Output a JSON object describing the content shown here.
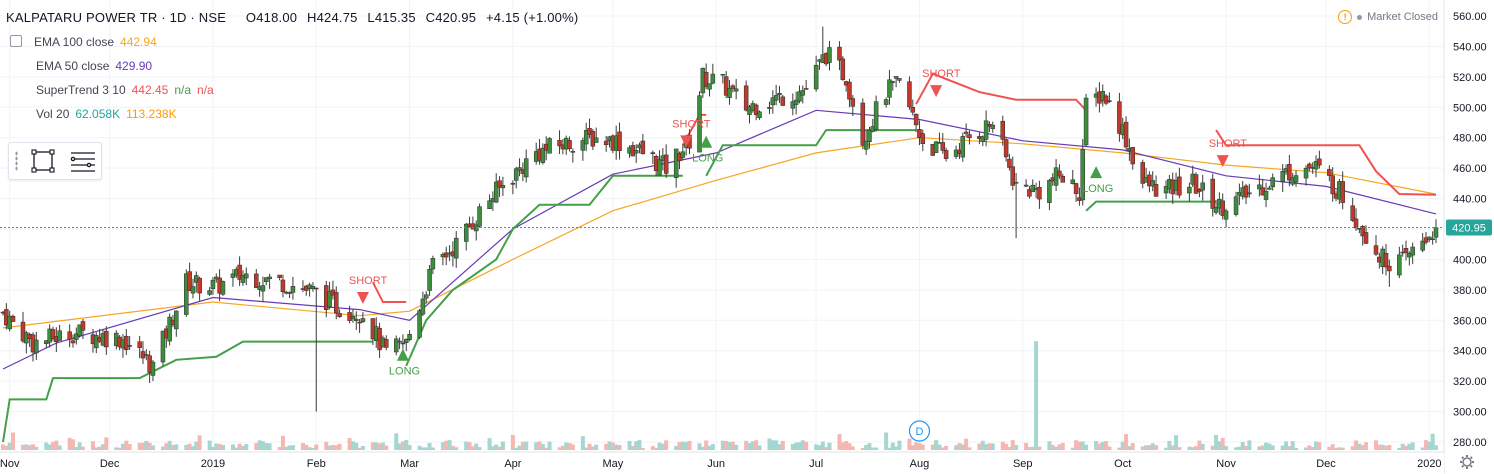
{
  "header": {
    "symbol_title": "KALPATARU POWER TR · 1D · NSE",
    "open_label": "O",
    "open": "418.00",
    "high_label": "H",
    "high": "424.75",
    "low_label": "L",
    "low": "415.35",
    "close_label": "C",
    "close": "420.95",
    "change": "+4.15 (+1.00%)"
  },
  "indicators": [
    {
      "label": "EMA 100 close",
      "values": [
        "442.94"
      ],
      "colors": [
        "#f5a623"
      ]
    },
    {
      "label": "EMA 50 close",
      "values": [
        "429.90"
      ],
      "colors": [
        "#673ab7"
      ]
    },
    {
      "label": "SuperTrend 3 10",
      "values": [
        "442.45",
        "n/a",
        "n/a"
      ],
      "colors": [
        "#ef5350",
        "#43a047",
        "#ef5350"
      ]
    },
    {
      "label": "Vol 20",
      "values": [
        "62.058K",
        "113.238K"
      ],
      "colors": [
        "#26a69a",
        "#ff9800"
      ]
    }
  ],
  "market_status": "Market Closed",
  "last_price_tag": "420.95",
  "dividend_marker": "D",
  "colors": {
    "up": "#26a69a",
    "down": "#ef5350",
    "candle_up": "#3c8d3c",
    "candle_down": "#c0392b",
    "ema100": "#f5a623",
    "ema50": "#673ab7",
    "st_up": "#43a047",
    "st_down": "#ef5350",
    "grid": "#f0f3fa",
    "last_price": "#26a69a"
  },
  "icons": [
    "rectangle-icon",
    "menu-lines-icon",
    "warning-icon",
    "settings-icon"
  ],
  "chart_data": {
    "type": "candlestick",
    "ylim": [
      275,
      565
    ],
    "y_ticks": [
      560,
      540,
      520,
      500,
      480,
      460,
      440,
      420,
      400,
      380,
      360,
      340,
      320,
      300,
      280
    ],
    "x_ticks": [
      {
        "label": "Nov",
        "date": "2018-11-01"
      },
      {
        "label": "Dec",
        "date": "2018-12-01"
      },
      {
        "label": "2019",
        "date": "2019-01-01"
      },
      {
        "label": "Feb",
        "date": "2019-02-01"
      },
      {
        "label": "Mar",
        "date": "2019-03-01"
      },
      {
        "label": "Apr",
        "date": "2019-04-01"
      },
      {
        "label": "May",
        "date": "2019-05-01"
      },
      {
        "label": "Jun",
        "date": "2019-06-01"
      },
      {
        "label": "Jul",
        "date": "2019-07-01"
      },
      {
        "label": "Aug",
        "date": "2019-08-01"
      },
      {
        "label": "Sep",
        "date": "2019-09-01"
      },
      {
        "label": "Oct",
        "date": "2019-10-01"
      },
      {
        "label": "Nov",
        "date": "2019-11-01"
      },
      {
        "label": "Dec",
        "date": "2019-12-01"
      },
      {
        "label": "2020",
        "date": "2020-01-01"
      }
    ],
    "price_path": [
      [
        "2018-10-30",
        365
      ],
      [
        "2018-11-08",
        345
      ],
      [
        "2018-11-20",
        352
      ],
      [
        "2018-12-05",
        348
      ],
      [
        "2018-12-14",
        330
      ],
      [
        "2018-12-24",
        385
      ],
      [
        "2019-01-02",
        382
      ],
      [
        "2019-01-10",
        390
      ],
      [
        "2019-01-22",
        385
      ],
      [
        "2019-02-01",
        378
      ],
      [
        "2019-02-08",
        368
      ],
      [
        "2019-02-15",
        365
      ],
      [
        "2019-02-22",
        338
      ],
      [
        "2019-02-28",
        345
      ],
      [
        "2019-03-08",
        395
      ],
      [
        "2019-03-15",
        410
      ],
      [
        "2019-03-25",
        440
      ],
      [
        "2019-04-01",
        455
      ],
      [
        "2019-04-08",
        470
      ],
      [
        "2019-04-15",
        475
      ],
      [
        "2019-04-25",
        480
      ],
      [
        "2019-05-02",
        478
      ],
      [
        "2019-05-10",
        470
      ],
      [
        "2019-05-17",
        460
      ],
      [
        "2019-05-24",
        478
      ],
      [
        "2019-05-28",
        520
      ],
      [
        "2019-06-03",
        515
      ],
      [
        "2019-06-10",
        500
      ],
      [
        "2019-06-18",
        505
      ],
      [
        "2019-06-28",
        512
      ],
      [
        "2019-07-04",
        535
      ],
      [
        "2019-07-10",
        520
      ],
      [
        "2019-07-15",
        480
      ],
      [
        "2019-07-22",
        510
      ],
      [
        "2019-07-26",
        515
      ],
      [
        "2019-08-02",
        478
      ],
      [
        "2019-08-09",
        468
      ],
      [
        "2019-08-16",
        480
      ],
      [
        "2019-08-23",
        490
      ],
      [
        "2019-08-30",
        448
      ],
      [
        "2019-09-06",
        445
      ],
      [
        "2019-09-12",
        455
      ],
      [
        "2019-09-18",
        445
      ],
      [
        "2019-09-20",
        500
      ],
      [
        "2019-09-25",
        510
      ],
      [
        "2019-10-01",
        485
      ],
      [
        "2019-10-07",
        450
      ],
      [
        "2019-10-14",
        445
      ],
      [
        "2019-10-22",
        450
      ],
      [
        "2019-10-30",
        435
      ],
      [
        "2019-11-05",
        440
      ],
      [
        "2019-11-13",
        450
      ],
      [
        "2019-11-22",
        460
      ],
      [
        "2019-11-28",
        460
      ],
      [
        "2019-12-05",
        445
      ],
      [
        "2019-12-12",
        420
      ],
      [
        "2019-12-18",
        400
      ],
      [
        "2019-12-24",
        398
      ],
      [
        "2019-12-30",
        412
      ],
      [
        "2020-01-03",
        420.95
      ]
    ],
    "wick_extremes": [
      {
        "date": "2019-02-01",
        "low": 300
      },
      {
        "date": "2019-08-30",
        "low": 414
      },
      {
        "date": "2019-07-03",
        "high": 553
      },
      {
        "date": "2019-12-20",
        "low": 382
      }
    ],
    "ema100": [
      [
        "2018-10-30",
        355
      ],
      [
        "2019-01-01",
        372
      ],
      [
        "2019-02-14",
        363
      ],
      [
        "2019-03-01",
        366
      ],
      [
        "2019-04-01",
        400
      ],
      [
        "2019-05-01",
        432
      ],
      [
        "2019-06-01",
        452
      ],
      [
        "2019-07-01",
        470
      ],
      [
        "2019-08-01",
        480
      ],
      [
        "2019-09-01",
        476
      ],
      [
        "2019-10-01",
        470
      ],
      [
        "2019-11-01",
        462
      ],
      [
        "2019-12-01",
        457
      ],
      [
        "2020-01-03",
        442.94
      ]
    ],
    "ema50": [
      [
        "2018-10-30",
        328
      ],
      [
        "2018-11-15",
        345
      ],
      [
        "2019-01-01",
        375
      ],
      [
        "2019-02-14",
        367
      ],
      [
        "2019-03-01",
        360
      ],
      [
        "2019-04-01",
        420
      ],
      [
        "2019-05-01",
        456
      ],
      [
        "2019-06-01",
        470
      ],
      [
        "2019-07-01",
        498
      ],
      [
        "2019-08-01",
        492
      ],
      [
        "2019-09-01",
        478
      ],
      [
        "2019-10-01",
        472
      ],
      [
        "2019-11-01",
        455
      ],
      [
        "2019-12-01",
        448
      ],
      [
        "2020-01-03",
        429.9
      ]
    ],
    "supertrend": [
      {
        "trend": "long",
        "points": [
          [
            "2018-10-30",
            280
          ],
          [
            "2018-11-01",
            308
          ],
          [
            "2018-11-12",
            308
          ],
          [
            "2018-11-14",
            322
          ],
          [
            "2018-12-10",
            322
          ],
          [
            "2018-12-21",
            334
          ],
          [
            "2019-01-02",
            336
          ],
          [
            "2019-01-10",
            346
          ],
          [
            "2019-02-18",
            346
          ]
        ]
      },
      {
        "trend": "short",
        "points": [
          [
            "2019-02-18",
            385
          ],
          [
            "2019-02-21",
            372
          ],
          [
            "2019-02-28",
            372
          ]
        ]
      },
      {
        "trend": "long",
        "points": [
          [
            "2019-02-28",
            330
          ],
          [
            "2019-03-06",
            360
          ],
          [
            "2019-03-14",
            380
          ],
          [
            "2019-03-27",
            400
          ],
          [
            "2019-04-01",
            420
          ],
          [
            "2019-04-09",
            436
          ],
          [
            "2019-04-24",
            436
          ],
          [
            "2019-05-01",
            455
          ],
          [
            "2019-05-22",
            455
          ]
        ]
      },
      {
        "trend": "short",
        "points": [
          [
            "2019-05-22",
            475
          ],
          [
            "2019-05-27",
            495
          ],
          [
            "2019-05-29",
            495
          ]
        ]
      },
      {
        "trend": "long",
        "points": [
          [
            "2019-05-29",
            455
          ],
          [
            "2019-06-03",
            475
          ],
          [
            "2019-07-01",
            475
          ],
          [
            "2019-07-04",
            485
          ],
          [
            "2019-07-31",
            485
          ]
        ]
      },
      {
        "trend": "short",
        "points": [
          [
            "2019-07-31",
            502
          ],
          [
            "2019-08-05",
            522
          ],
          [
            "2019-08-19",
            510
          ],
          [
            "2019-08-30",
            505
          ],
          [
            "2019-09-17",
            505
          ],
          [
            "2019-09-20",
            498
          ]
        ]
      },
      {
        "trend": "long",
        "points": [
          [
            "2019-09-20",
            432
          ],
          [
            "2019-09-23",
            438
          ],
          [
            "2019-10-29",
            438
          ]
        ]
      },
      {
        "trend": "short",
        "points": [
          [
            "2019-10-29",
            485
          ],
          [
            "2019-11-01",
            475
          ],
          [
            "2019-12-11",
            475
          ],
          [
            "2019-12-16",
            458
          ],
          [
            "2019-12-23",
            443
          ],
          [
            "2020-01-03",
            442.45
          ]
        ]
      }
    ],
    "signals": [
      {
        "label": "SHORT",
        "date": "2019-02-15",
        "price": 372,
        "type": "short"
      },
      {
        "label": "LONG",
        "date": "2019-02-27",
        "price": 340,
        "type": "long"
      },
      {
        "label": "SHORT",
        "date": "2019-05-23",
        "price": 475,
        "type": "short"
      },
      {
        "label": "LONG",
        "date": "2019-05-29",
        "price": 480,
        "type": "long"
      },
      {
        "label": "SHORT",
        "date": "2019-08-06",
        "price": 508,
        "type": "short"
      },
      {
        "label": "LONG",
        "date": "2019-09-23",
        "price": 460,
        "type": "long"
      },
      {
        "label": "SHORT",
        "date": "2019-10-31",
        "price": 462,
        "type": "short"
      }
    ],
    "volume_spikes": [
      {
        "date": "2019-09-05",
        "height_fraction": 0.68
      }
    ],
    "dividend": {
      "date": "2019-08-01"
    },
    "last_date": "2020-01-03",
    "last_close": 420.95
  }
}
